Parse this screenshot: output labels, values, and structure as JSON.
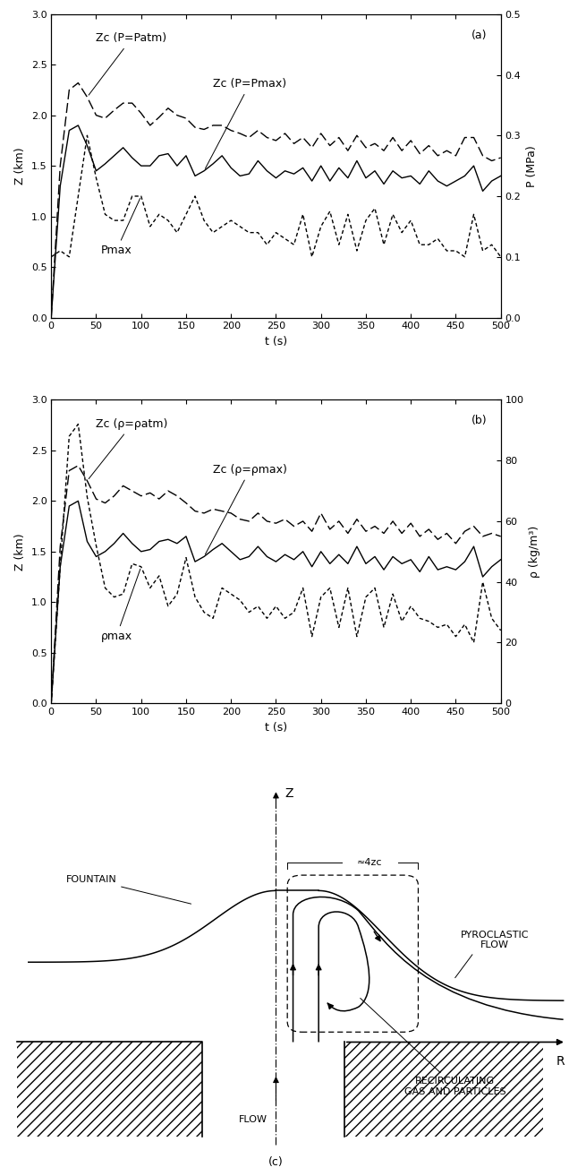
{
  "chart_data": [
    {
      "type": "line",
      "title": "(a)",
      "x_label": "t (s)",
      "y_label": "Z (km)",
      "y2_label": "P (MPa)",
      "x": [
        0,
        10,
        20,
        30,
        40,
        50,
        60,
        70,
        80,
        90,
        100,
        110,
        120,
        130,
        140,
        150,
        160,
        170,
        180,
        190,
        200,
        210,
        220,
        230,
        240,
        250,
        260,
        270,
        280,
        290,
        300,
        310,
        320,
        330,
        340,
        350,
        360,
        370,
        380,
        390,
        400,
        410,
        420,
        430,
        440,
        450,
        460,
        470,
        480,
        490,
        500
      ],
      "xlim": [
        0,
        500
      ],
      "xticks": [
        0,
        50,
        100,
        150,
        200,
        250,
        300,
        350,
        400,
        450,
        500
      ],
      "ylim": [
        0,
        3
      ],
      "yticks": [
        {
          "value": 0,
          "label": "0.0"
        },
        {
          "value": 0.5,
          "label": "0.5"
        },
        {
          "value": 1,
          "label": "1.0"
        },
        {
          "value": 1.5,
          "label": "1.5"
        },
        {
          "value": 2,
          "label": "2.0"
        },
        {
          "value": 2.5,
          "label": "2.5"
        },
        {
          "value": 3,
          "label": "3.0"
        }
      ],
      "y2lim": [
        0,
        0.5
      ],
      "y2ticks": [
        {
          "value": 0,
          "label": "0.0"
        },
        {
          "value": 0.1,
          "label": "0.1"
        },
        {
          "value": 0.2,
          "label": "0.2"
        },
        {
          "value": 0.3,
          "label": "0.3"
        },
        {
          "value": 0.4,
          "label": "0.4"
        },
        {
          "value": 0.5,
          "label": "0.5"
        }
      ],
      "series": [
        {
          "name": "Zc (P=Patm)",
          "color": "#000000",
          "line_style": "dashed",
          "values": [
            0,
            1.5,
            2.25,
            2.32,
            2.18,
            2.0,
            1.97,
            2.05,
            2.12,
            2.12,
            2.02,
            1.9,
            1.98,
            2.07,
            2.0,
            1.97,
            1.88,
            1.86,
            1.9,
            1.9,
            1.85,
            1.82,
            1.78,
            1.85,
            1.78,
            1.75,
            1.82,
            1.72,
            1.78,
            1.68,
            1.82,
            1.7,
            1.78,
            1.65,
            1.8,
            1.68,
            1.72,
            1.65,
            1.78,
            1.65,
            1.75,
            1.62,
            1.7,
            1.6,
            1.65,
            1.6,
            1.78,
            1.78,
            1.6,
            1.55,
            1.58
          ]
        },
        {
          "name": "Zc (P=Pmax)",
          "color": "#000000",
          "line_style": "solid",
          "values": [
            0,
            1.3,
            1.85,
            1.9,
            1.7,
            1.45,
            1.52,
            1.6,
            1.68,
            1.58,
            1.5,
            1.5,
            1.6,
            1.62,
            1.5,
            1.6,
            1.4,
            1.45,
            1.52,
            1.6,
            1.48,
            1.4,
            1.42,
            1.55,
            1.45,
            1.38,
            1.45,
            1.42,
            1.48,
            1.35,
            1.5,
            1.35,
            1.48,
            1.38,
            1.55,
            1.38,
            1.45,
            1.32,
            1.45,
            1.38,
            1.4,
            1.32,
            1.45,
            1.35,
            1.3,
            1.35,
            1.4,
            1.5,
            1.25,
            1.35,
            1.4
          ]
        },
        {
          "name": "Pmax",
          "color": "#000000",
          "line_style": "dotted",
          "axis": "y2",
          "values": [
            0.1,
            0.11,
            0.1,
            0.2,
            0.3,
            0.23,
            0.17,
            0.16,
            0.16,
            0.2,
            0.2,
            0.15,
            0.17,
            0.16,
            0.14,
            0.17,
            0.2,
            0.16,
            0.14,
            0.15,
            0.16,
            0.15,
            0.14,
            0.14,
            0.12,
            0.14,
            0.13,
            0.12,
            0.17,
            0.1,
            0.15,
            0.175,
            0.12,
            0.17,
            0.11,
            0.16,
            0.18,
            0.12,
            0.17,
            0.14,
            0.16,
            0.12,
            0.12,
            0.13,
            0.11,
            0.11,
            0.1,
            0.17,
            0.11,
            0.12,
            0.1
          ]
        }
      ]
    },
    {
      "type": "line",
      "title": "(b)",
      "x_label": "t (s)",
      "y_label": "Z (km)",
      "y2_label": "ρ (kg/m³)",
      "x": [
        0,
        10,
        20,
        30,
        40,
        50,
        60,
        70,
        80,
        90,
        100,
        110,
        120,
        130,
        140,
        150,
        160,
        170,
        180,
        190,
        200,
        210,
        220,
        230,
        240,
        250,
        260,
        270,
        280,
        290,
        300,
        310,
        320,
        330,
        340,
        350,
        360,
        370,
        380,
        390,
        400,
        410,
        420,
        430,
        440,
        450,
        460,
        470,
        480,
        490,
        500
      ],
      "xlim": [
        0,
        500
      ],
      "xticks": [
        0,
        50,
        100,
        150,
        200,
        250,
        300,
        350,
        400,
        450,
        500
      ],
      "ylim": [
        0,
        3
      ],
      "yticks": [
        {
          "value": 0,
          "label": "0.0"
        },
        {
          "value": 0.5,
          "label": "0.5"
        },
        {
          "value": 1,
          "label": "1.0"
        },
        {
          "value": 1.5,
          "label": "1.5"
        },
        {
          "value": 2,
          "label": "2.0"
        },
        {
          "value": 2.5,
          "label": "2.5"
        },
        {
          "value": 3,
          "label": "3.0"
        }
      ],
      "y2lim": [
        0,
        100
      ],
      "y2ticks": [
        0,
        20,
        40,
        60,
        80,
        100
      ],
      "series": [
        {
          "name": "Zc (ρ=ρatm)",
          "color": "#000000",
          "line_style": "dashed",
          "values": [
            0,
            1.55,
            2.3,
            2.35,
            2.2,
            2.02,
            1.98,
            2.05,
            2.15,
            2.1,
            2.05,
            2.08,
            2.02,
            2.1,
            2.05,
            1.98,
            1.9,
            1.88,
            1.92,
            1.9,
            1.88,
            1.82,
            1.8,
            1.88,
            1.8,
            1.78,
            1.82,
            1.75,
            1.8,
            1.7,
            1.88,
            1.72,
            1.8,
            1.68,
            1.82,
            1.7,
            1.75,
            1.68,
            1.8,
            1.68,
            1.78,
            1.65,
            1.72,
            1.62,
            1.68,
            1.58,
            1.7,
            1.75,
            1.65,
            1.68,
            1.65
          ]
        },
        {
          "name": "Zc (ρ=ρmax)",
          "color": "#000000",
          "line_style": "solid",
          "values": [
            0,
            1.35,
            1.95,
            2.0,
            1.6,
            1.45,
            1.5,
            1.58,
            1.68,
            1.58,
            1.5,
            1.52,
            1.6,
            1.62,
            1.58,
            1.65,
            1.4,
            1.45,
            1.52,
            1.58,
            1.5,
            1.42,
            1.45,
            1.55,
            1.45,
            1.4,
            1.47,
            1.42,
            1.5,
            1.35,
            1.5,
            1.38,
            1.47,
            1.38,
            1.55,
            1.38,
            1.45,
            1.32,
            1.45,
            1.38,
            1.42,
            1.3,
            1.45,
            1.32,
            1.35,
            1.32,
            1.4,
            1.55,
            1.25,
            1.35,
            1.42
          ]
        },
        {
          "name": "ρmax",
          "color": "#000000",
          "line_style": "dotted",
          "axis": "y2",
          "values": [
            0,
            45,
            88,
            92,
            68,
            52,
            38,
            35,
            36,
            46,
            45,
            38,
            42,
            32,
            36,
            48,
            35,
            30,
            28,
            38,
            36,
            34,
            30,
            32,
            28,
            32,
            28,
            30,
            38,
            22,
            35,
            38,
            25,
            38,
            22,
            35,
            38,
            25,
            36,
            27,
            32,
            28,
            27,
            25,
            26,
            22,
            26,
            20,
            40,
            28,
            24
          ]
        }
      ]
    }
  ],
  "diagram": {
    "label": "(c)",
    "vertical_axis": "Z",
    "horizontal_axis": "R",
    "fountain": "FOUNTAIN",
    "pyroclastic_flow": "PYROCLASTIC\nFLOW",
    "recirculation": "RECIRCULATING\nGAS AND PARTICLES",
    "flow": "FLOW",
    "box_size": "≈4zc"
  }
}
